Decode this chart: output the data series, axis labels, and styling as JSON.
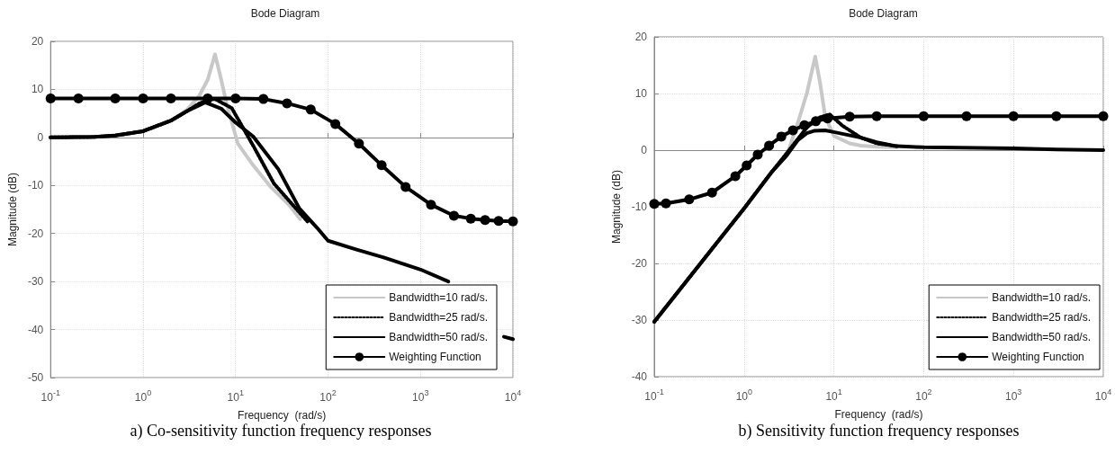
{
  "chart_data": [
    {
      "type": "line",
      "title": "Bode Diagram",
      "xlabel": "Frequency  (rad/s)",
      "ylabel": "Magnitude (dB)",
      "log": "x",
      "grid": true,
      "legend": "bottom right",
      "line_style": "solid",
      "xlim": [
        0.1,
        10000
      ],
      "xticks": [
        {
          "value": 0.1,
          "label": "10$^{-1}$"
        },
        {
          "value": 1,
          "label": "10$^{0}$"
        },
        {
          "value": 10,
          "label": "10$^{1}$"
        },
        {
          "value": 100,
          "label": "10$^{2}$"
        },
        {
          "value": 1000,
          "label": "10$^{3}$"
        },
        {
          "value": 10000,
          "label": "10$^{4}$"
        }
      ],
      "ylim": [
        -50,
        20
      ],
      "yticks": [
        -50,
        -40,
        -30,
        -20,
        -10,
        0,
        10,
        20
      ],
      "annotations": [
        "a) Co-sensitivity function frequency responses"
      ],
      "series": [
        {
          "name": "Bandwidth=10 rad/s.",
          "color": "#c8c8c8",
          "marker": "none",
          "x": [
            0.1,
            0.3,
            0.5,
            1,
            2,
            3,
            4,
            5,
            6,
            7,
            8,
            10.6,
            15.5,
            24,
            38,
            50
          ],
          "values": [
            0,
            0.1,
            0.4,
            1.3,
            3.5,
            5.8,
            8.5,
            12,
            17.3,
            12,
            7,
            -1.3,
            -5.8,
            -10.3,
            -14.1,
            -17
          ]
        },
        {
          "name": "Bandwidth=25 rad/s.",
          "color": "#000000",
          "marker": "none",
          "line_style": "dotted",
          "x": [
            0.1,
            0.3,
            0.5,
            1,
            2,
            3,
            4,
            5,
            6,
            9.1,
            15.5,
            26,
            45,
            60
          ],
          "values": [
            0,
            0.1,
            0.4,
            1.3,
            3.5,
            5.5,
            7,
            7.8,
            8,
            6.1,
            -1.7,
            -9.6,
            -14.8,
            -17.5
          ]
        },
        {
          "name": "Bandwidth=50 rad/s.",
          "color": "#000000",
          "marker": "none",
          "x": [
            0.1,
            0.3,
            0.5,
            1,
            2,
            3,
            4.7,
            7,
            10,
            15.5,
            29,
            49,
            76,
            100,
            200,
            400,
            1000,
            2000,
            3000,
            5000,
            8000,
            10000
          ],
          "values": [
            0,
            0.1,
            0.4,
            1.3,
            3.5,
            5.5,
            7.3,
            6,
            3.1,
            0.2,
            -6.6,
            -14.8,
            -18.8,
            -21.5,
            -23.3,
            -25,
            -27.5,
            -30,
            null,
            null,
            -41.5,
            -42
          ]
        },
        {
          "name": "Weighting Function",
          "color": "#000000",
          "marker": "circle",
          "x": [
            0.1,
            0.2,
            0.5,
            1,
            2,
            5,
            10,
            20,
            36,
            65,
            120,
            216,
            380,
            690,
            1300,
            2300,
            3500,
            5000,
            7000,
            10000
          ],
          "values": [
            8.1,
            8.1,
            8.1,
            8.1,
            8.1,
            8.1,
            8.1,
            8,
            7.1,
            5.8,
            2.8,
            -1.3,
            -5.8,
            -10.3,
            -14,
            -16.3,
            -16.9,
            -17.2,
            -17.4,
            -17.5
          ]
        }
      ]
    },
    {
      "type": "line",
      "title": "Bode Diagram",
      "xlabel": "Frequency  (rad/s)",
      "ylabel": "Magnitude (dB)",
      "log": "x",
      "grid": true,
      "legend": "bottom right",
      "line_style": "solid",
      "xlim": [
        0.1,
        10000
      ],
      "xticks": [
        {
          "value": 0.1,
          "label": "10$^{-1}$"
        },
        {
          "value": 1,
          "label": "10$^{0}$"
        },
        {
          "value": 10,
          "label": "10$^{1}$"
        },
        {
          "value": 100,
          "label": "10$^{2}$"
        },
        {
          "value": 1000,
          "label": "10$^{3}$"
        },
        {
          "value": 10000,
          "label": "10$^{4}$"
        }
      ],
      "ylim": [
        -40,
        20
      ],
      "yticks": [
        -40,
        -30,
        -20,
        -10,
        0,
        10,
        20
      ],
      "annotations": [
        "b) Sensitivity function frequency responses"
      ],
      "series": [
        {
          "name": "Bandwidth=10 rad/s.",
          "color": "#c8c8c8",
          "marker": "none",
          "x": [
            0.1,
            1,
            2,
            3,
            4,
            5,
            6.2,
            7,
            8,
            10,
            15,
            20,
            30,
            50
          ],
          "values": [
            -30.3,
            -10.3,
            -4,
            -0.9,
            5,
            10,
            16.5,
            12,
            6,
            2.5,
            1.2,
            0.8,
            0.6,
            0.5
          ]
        },
        {
          "name": "Bandwidth=25 rad/s.",
          "color": "#000000",
          "marker": "none",
          "line_style": "dotted",
          "x": [
            0.1,
            1,
            2,
            3,
            5,
            7,
            9,
            12.5,
            20,
            30,
            50
          ],
          "values": [
            -30.3,
            -10.3,
            -4,
            -0.5,
            4,
            5.8,
            6.3,
            4.3,
            2.2,
            1.2,
            0.7
          ]
        },
        {
          "name": "Bandwidth=50 rad/s.",
          "color": "#000000",
          "marker": "none",
          "x": [
            0.1,
            1,
            2,
            3,
            4,
            5,
            6,
            8,
            10,
            20,
            30,
            50,
            100,
            1000,
            3000,
            10000
          ],
          "values": [
            -30.3,
            -10.3,
            -4,
            -0.9,
            1.8,
            3,
            3.4,
            3.5,
            3.2,
            2.2,
            1.4,
            0.7,
            0.5,
            0.3,
            0.1,
            0
          ]
        },
        {
          "name": "Weighting Function",
          "color": "#000000",
          "marker": "circle",
          "x": [
            0.1,
            0.135,
            0.245,
            0.44,
            0.8,
            1.07,
            1.42,
            1.9,
            2.6,
            3.5,
            4.7,
            6.3,
            8.5,
            15,
            30,
            100,
            300,
            1000,
            3000,
            10000
          ],
          "values": [
            -9.5,
            -9.4,
            -8.7,
            -7.5,
            -4.6,
            -2.7,
            -0.8,
            0.8,
            2.4,
            3.5,
            4.4,
            5.1,
            5.6,
            5.9,
            6,
            6,
            6,
            6,
            6,
            6
          ]
        }
      ]
    }
  ]
}
